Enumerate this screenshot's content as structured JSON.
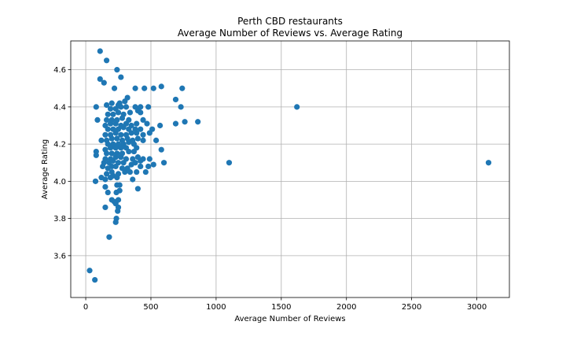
{
  "chart_data": {
    "type": "scatter",
    "title": "Perth CBD restaurants",
    "subtitle": "Average Number of Reviews vs. Average Rating",
    "xlabel": "Average Number of Reviews",
    "ylabel": "Average Rating",
    "xlim": [
      -115,
      3250
    ],
    "ylim": [
      3.375,
      4.755
    ],
    "xticks": [
      0,
      500,
      1000,
      1500,
      2000,
      2500,
      3000
    ],
    "yticks": [
      3.6,
      3.8,
      4.0,
      4.2,
      4.4,
      4.6
    ],
    "xtick_labels": [
      "0",
      "500",
      "1000",
      "1500",
      "2000",
      "2500",
      "3000"
    ],
    "ytick_labels": [
      "3.6",
      "3.8",
      "4.0",
      "4.2",
      "4.4",
      "4.6"
    ],
    "grid": true,
    "marker_color": "#1f77b4",
    "series": [
      {
        "points": [
          [
            30,
            3.52
          ],
          [
            70,
            3.47
          ],
          [
            180,
            3.7
          ],
          [
            230,
            3.78
          ],
          [
            235,
            3.8
          ],
          [
            245,
            3.84
          ],
          [
            250,
            3.86
          ],
          [
            150,
            3.86
          ],
          [
            230,
            3.88
          ],
          [
            250,
            3.9
          ],
          [
            200,
            3.9
          ],
          [
            220,
            3.89
          ],
          [
            260,
            3.95
          ],
          [
            170,
            3.94
          ],
          [
            235,
            3.94
          ],
          [
            400,
            3.96
          ],
          [
            150,
            3.97
          ],
          [
            240,
            3.98
          ],
          [
            260,
            3.98
          ],
          [
            75,
            4.0
          ],
          [
            150,
            4.01
          ],
          [
            120,
            4.02
          ],
          [
            190,
            4.02
          ],
          [
            210,
            4.03
          ],
          [
            240,
            4.02
          ],
          [
            360,
            4.01
          ],
          [
            160,
            4.04
          ],
          [
            200,
            4.05
          ],
          [
            250,
            4.04
          ],
          [
            300,
            4.05
          ],
          [
            340,
            4.05
          ],
          [
            390,
            4.05
          ],
          [
            460,
            4.05
          ],
          [
            130,
            4.08
          ],
          [
            170,
            4.07
          ],
          [
            200,
            4.08
          ],
          [
            230,
            4.08
          ],
          [
            280,
            4.07
          ],
          [
            320,
            4.07
          ],
          [
            420,
            4.08
          ],
          [
            480,
            4.08
          ],
          [
            140,
            4.1
          ],
          [
            180,
            4.1
          ],
          [
            210,
            4.11
          ],
          [
            250,
            4.1
          ],
          [
            290,
            4.1
          ],
          [
            350,
            4.09
          ],
          [
            380,
            4.1
          ],
          [
            420,
            4.11
          ],
          [
            520,
            4.09
          ],
          [
            600,
            4.1
          ],
          [
            1100,
            4.1
          ],
          [
            3090,
            4.1
          ],
          [
            150,
            4.12
          ],
          [
            190,
            4.12
          ],
          [
            230,
            4.13
          ],
          [
            270,
            4.13
          ],
          [
            310,
            4.12
          ],
          [
            360,
            4.12
          ],
          [
            400,
            4.13
          ],
          [
            440,
            4.12
          ],
          [
            490,
            4.12
          ],
          [
            80,
            4.14
          ],
          [
            160,
            4.15
          ],
          [
            200,
            4.15
          ],
          [
            240,
            4.15
          ],
          [
            280,
            4.15
          ],
          [
            330,
            4.16
          ],
          [
            370,
            4.16
          ],
          [
            80,
            4.16
          ],
          [
            150,
            4.17
          ],
          [
            190,
            4.18
          ],
          [
            230,
            4.18
          ],
          [
            270,
            4.18
          ],
          [
            310,
            4.18
          ],
          [
            390,
            4.18
          ],
          [
            580,
            4.17
          ],
          [
            170,
            4.2
          ],
          [
            210,
            4.2
          ],
          [
            250,
            4.2
          ],
          [
            290,
            4.2
          ],
          [
            330,
            4.21
          ],
          [
            370,
            4.2
          ],
          [
            120,
            4.22
          ],
          [
            160,
            4.22
          ],
          [
            200,
            4.23
          ],
          [
            240,
            4.23
          ],
          [
            280,
            4.22
          ],
          [
            320,
            4.23
          ],
          [
            360,
            4.22
          ],
          [
            400,
            4.23
          ],
          [
            440,
            4.22
          ],
          [
            540,
            4.22
          ],
          [
            150,
            4.25
          ],
          [
            190,
            4.25
          ],
          [
            230,
            4.26
          ],
          [
            270,
            4.25
          ],
          [
            310,
            4.25
          ],
          [
            350,
            4.26
          ],
          [
            390,
            4.26
          ],
          [
            440,
            4.25
          ],
          [
            490,
            4.26
          ],
          [
            170,
            4.28
          ],
          [
            210,
            4.28
          ],
          [
            250,
            4.28
          ],
          [
            290,
            4.29
          ],
          [
            330,
            4.28
          ],
          [
            380,
            4.28
          ],
          [
            420,
            4.28
          ],
          [
            510,
            4.28
          ],
          [
            150,
            4.3
          ],
          [
            190,
            4.31
          ],
          [
            230,
            4.31
          ],
          [
            270,
            4.3
          ],
          [
            310,
            4.31
          ],
          [
            350,
            4.3
          ],
          [
            390,
            4.31
          ],
          [
            470,
            4.31
          ],
          [
            570,
            4.3
          ],
          [
            690,
            4.31
          ],
          [
            760,
            4.32
          ],
          [
            860,
            4.32
          ],
          [
            160,
            4.33
          ],
          [
            200,
            4.33
          ],
          [
            240,
            4.33
          ],
          [
            280,
            4.34
          ],
          [
            330,
            4.33
          ],
          [
            440,
            4.33
          ],
          [
            90,
            4.33
          ],
          [
            170,
            4.36
          ],
          [
            210,
            4.36
          ],
          [
            250,
            4.37
          ],
          [
            290,
            4.36
          ],
          [
            340,
            4.37
          ],
          [
            400,
            4.38
          ],
          [
            420,
            4.37
          ],
          [
            190,
            4.39
          ],
          [
            230,
            4.39
          ],
          [
            270,
            4.4
          ],
          [
            310,
            4.4
          ],
          [
            380,
            4.4
          ],
          [
            420,
            4.4
          ],
          [
            480,
            4.4
          ],
          [
            730,
            4.4
          ],
          [
            1620,
            4.4
          ],
          [
            80,
            4.4
          ],
          [
            160,
            4.41
          ],
          [
            200,
            4.42
          ],
          [
            260,
            4.42
          ],
          [
            300,
            4.43
          ],
          [
            250,
            4.41
          ],
          [
            690,
            4.44
          ],
          [
            320,
            4.45
          ],
          [
            220,
            4.5
          ],
          [
            380,
            4.5
          ],
          [
            450,
            4.5
          ],
          [
            520,
            4.5
          ],
          [
            580,
            4.51
          ],
          [
            740,
            4.5
          ],
          [
            140,
            4.53
          ],
          [
            110,
            4.55
          ],
          [
            270,
            4.56
          ],
          [
            240,
            4.6
          ],
          [
            160,
            4.65
          ],
          [
            110,
            4.7
          ]
        ]
      }
    ]
  }
}
